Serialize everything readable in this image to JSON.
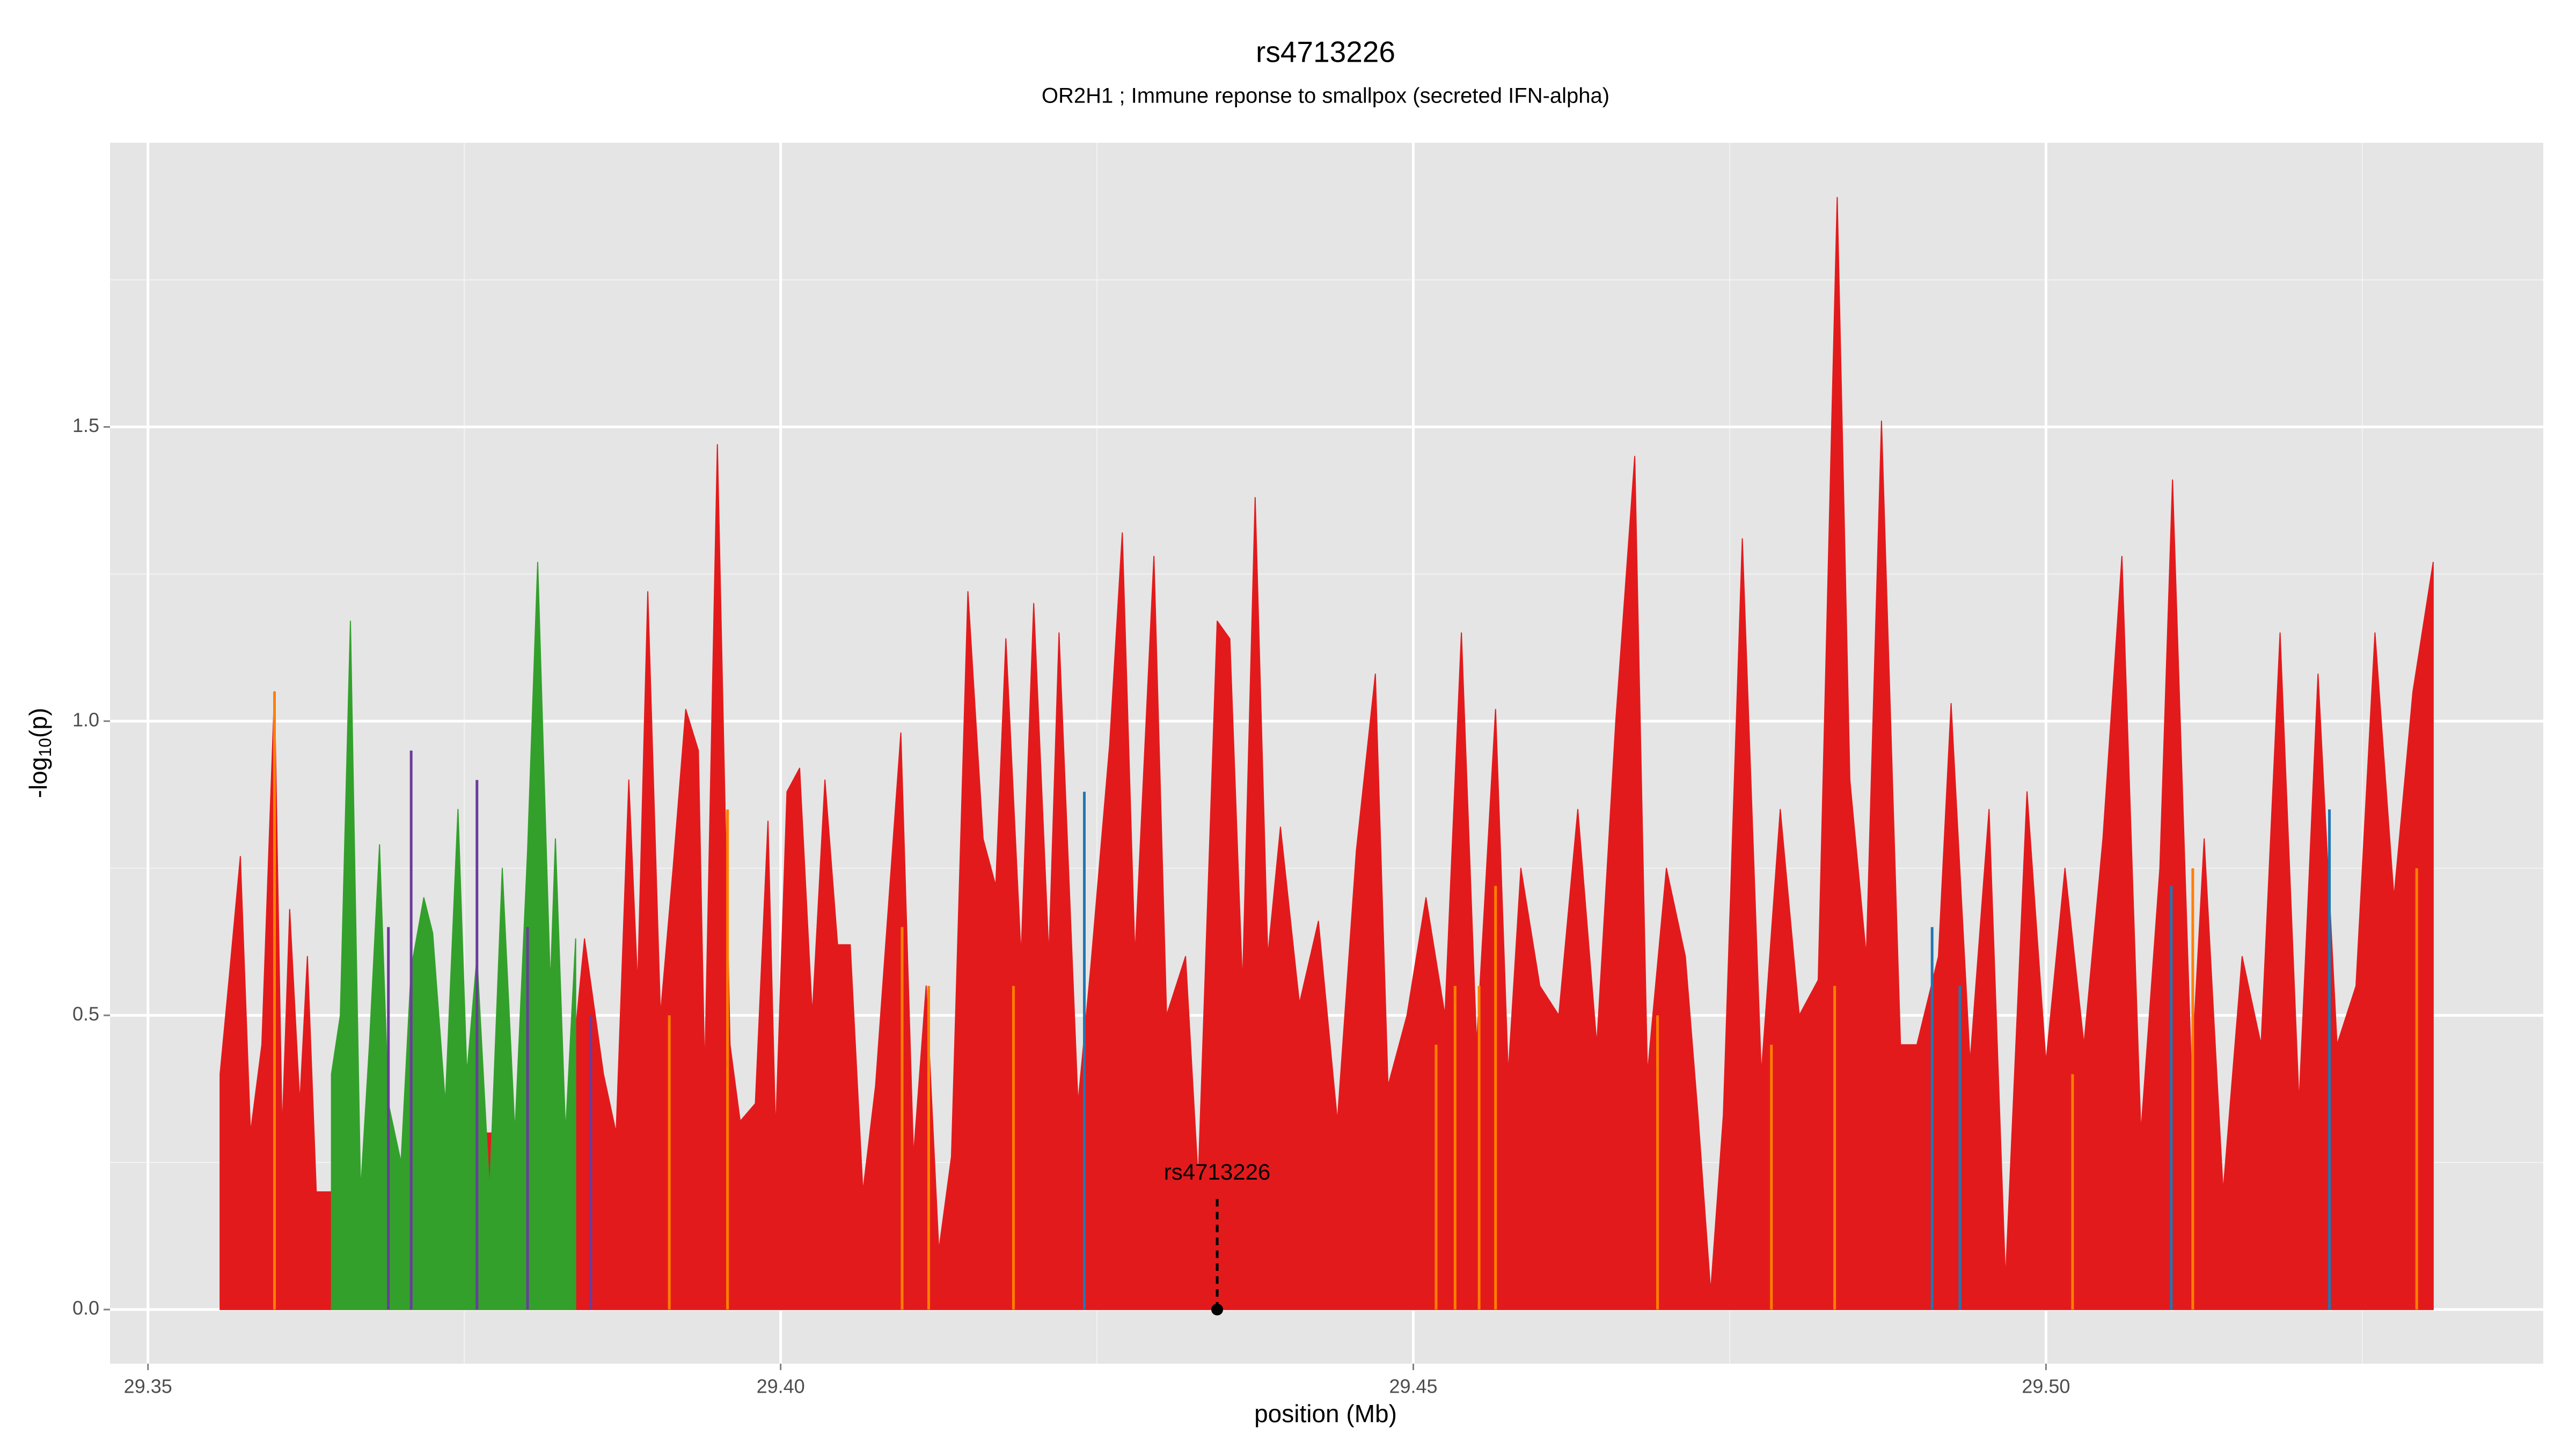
{
  "chart_data": {
    "type": "area",
    "title": "rs4713226",
    "subtitle": "OR2H1 ; Immune reponse to smallpox (secreted IFN-alpha)",
    "xlabel": "position (Mb)",
    "ylabel": [
      "-log",
      "10",
      "(p)"
    ],
    "xlim": [
      29.347,
      29.5393
    ],
    "ylim": [
      -0.092,
      1.983
    ],
    "xticks": [
      {
        "value": 29.35,
        "label": "29.35"
      },
      {
        "value": 29.4,
        "label": "29.40"
      },
      {
        "value": 29.45,
        "label": "29.45"
      },
      {
        "value": 29.5,
        "label": "29.50"
      }
    ],
    "yticks": [
      {
        "value": 0,
        "label": "0.0"
      },
      0.5,
      {
        "value": 1,
        "label": "1.0"
      },
      1.5
    ],
    "grid": true,
    "series": [
      {
        "style": "area",
        "color": "#e31a1c",
        "x": [
          29.3557,
          29.3564,
          29.3573,
          29.3581,
          29.359,
          29.36,
          29.3606,
          29.3612,
          29.362,
          29.3626,
          29.3633,
          29.365,
          29.375,
          29.383,
          29.3845,
          29.386,
          29.387,
          29.388,
          29.3887,
          29.3895,
          29.3905,
          29.3915,
          29.3925,
          29.3935,
          29.394,
          29.395,
          29.396,
          29.3968,
          29.398,
          29.399,
          29.3996,
          29.4005,
          29.4015,
          29.4025,
          29.4035,
          29.4045,
          29.4055,
          29.4065,
          29.4075,
          29.4095,
          29.4105,
          29.4115,
          29.4125,
          29.4135,
          29.4148,
          29.416,
          29.417,
          29.4178,
          29.419,
          29.42,
          29.4212,
          29.422,
          29.4235,
          29.4245,
          29.426,
          29.427,
          29.428,
          29.4295,
          29.4305,
          29.432,
          29.433,
          29.4345,
          29.4355,
          29.4365,
          29.4375,
          29.4385,
          29.4395,
          29.441,
          29.4425,
          29.444,
          29.4455,
          29.447,
          29.448,
          29.4495,
          29.451,
          29.4525,
          29.4538,
          29.455,
          29.4565,
          29.4575,
          29.4585,
          29.46,
          29.4615,
          29.463,
          29.4645,
          29.466,
          29.4675,
          29.4685,
          29.47,
          29.4715,
          29.4725,
          29.4735,
          29.4745,
          29.476,
          29.4775,
          29.479,
          29.4805,
          29.482,
          29.4835,
          29.4845,
          29.4858,
          29.487,
          29.4885,
          29.4898,
          29.4915,
          29.4925,
          29.494,
          29.4955,
          29.4968,
          29.4985,
          29.5,
          29.5015,
          29.503,
          29.5045,
          29.506,
          29.5075,
          29.509,
          29.51,
          29.5115,
          29.5125,
          29.514,
          29.5155,
          29.517,
          29.5185,
          29.52,
          29.5215,
          29.523,
          29.5245,
          29.526,
          29.5275,
          29.529,
          29.5306
        ],
        "values": [
          0.4,
          0.56,
          0.77,
          0.3,
          0.45,
          1.05,
          0.3,
          0.68,
          0.35,
          0.6,
          0.2,
          0.2,
          0.3,
          0.3,
          0.63,
          0.4,
          0.3,
          0.9,
          0.55,
          1.22,
          0.5,
          0.75,
          1.02,
          0.95,
          0.4,
          1.47,
          0.45,
          0.32,
          0.35,
          0.83,
          0.3,
          0.88,
          0.92,
          0.5,
          0.9,
          0.62,
          0.62,
          0.2,
          0.38,
          0.98,
          0.26,
          0.55,
          0.1,
          0.26,
          1.22,
          0.8,
          0.72,
          1.14,
          0.6,
          1.2,
          0.6,
          1.15,
          0.35,
          0.58,
          0.96,
          1.32,
          0.6,
          1.28,
          0.5,
          0.6,
          0.22,
          1.17,
          1.14,
          0.55,
          1.38,
          0.6,
          0.82,
          0.52,
          0.66,
          0.32,
          0.78,
          1.08,
          0.38,
          0.5,
          0.7,
          0.5,
          1.15,
          0.45,
          1.02,
          0.4,
          0.75,
          0.55,
          0.5,
          0.85,
          0.45,
          1.0,
          1.45,
          0.4,
          0.75,
          0.6,
          0.33,
          0.03,
          0.33,
          1.31,
          0.4,
          0.85,
          0.5,
          0.56,
          1.89,
          0.9,
          0.6,
          1.51,
          0.45,
          0.45,
          0.6,
          1.03,
          0.42,
          0.85,
          0.05,
          0.88,
          0.42,
          0.75,
          0.45,
          0.8,
          1.28,
          0.3,
          0.75,
          1.41,
          0.4,
          0.8,
          0.2,
          0.6,
          0.45,
          1.15,
          0.35,
          1.08,
          0.45,
          0.55,
          1.15,
          0.7,
          1.05,
          1.27
        ]
      },
      {
        "style": "area",
        "color": "#33a02c",
        "x": [
          29.3645,
          29.3652,
          29.366,
          29.3668,
          29.3675,
          29.3683,
          29.369,
          29.37,
          29.3708,
          29.3718,
          29.3725,
          29.3735,
          29.3745,
          29.3752,
          29.376,
          29.377,
          29.378,
          29.379,
          29.38,
          29.3808,
          29.3818,
          29.3822,
          29.383,
          29.3838
        ],
        "values": [
          0.4,
          0.5,
          1.17,
          0.2,
          0.45,
          0.79,
          0.35,
          0.25,
          0.58,
          0.7,
          0.64,
          0.35,
          0.85,
          0.4,
          0.6,
          0.2,
          0.75,
          0.3,
          0.78,
          1.27,
          0.55,
          0.8,
          0.3,
          0.63
        ]
      },
      {
        "style": "spike",
        "color": "#ff7f00",
        "x": [
          29.36,
          29.3912,
          29.3958,
          29.4096,
          29.4117,
          29.4184,
          29.4518,
          29.4533,
          29.4552,
          29.4565,
          29.4693,
          29.4783,
          29.4833,
          29.5021,
          29.5116,
          29.5293
        ],
        "values": [
          1.05,
          0.5,
          0.85,
          0.65,
          0.55,
          0.55,
          0.45,
          0.55,
          0.55,
          0.72,
          0.5,
          0.45,
          0.55,
          0.4,
          0.75,
          0.75
        ]
      },
      {
        "style": "spike",
        "color": "#6a3d9a",
        "x": [
          29.369,
          29.3708,
          29.376,
          29.38,
          29.385
        ],
        "values": [
          0.65,
          0.95,
          0.9,
          0.65,
          0.5
        ]
      },
      {
        "style": "spike",
        "color": "#1f78b4",
        "x": [
          29.424,
          29.491,
          29.4932,
          29.5099,
          29.5224
        ],
        "values": [
          0.88,
          0.65,
          0.55,
          0.72,
          0.85
        ]
      }
    ],
    "annotation": {
      "label": "rs4713226",
      "x": 29.4345,
      "y": 0,
      "line_top": 0.19
    }
  }
}
